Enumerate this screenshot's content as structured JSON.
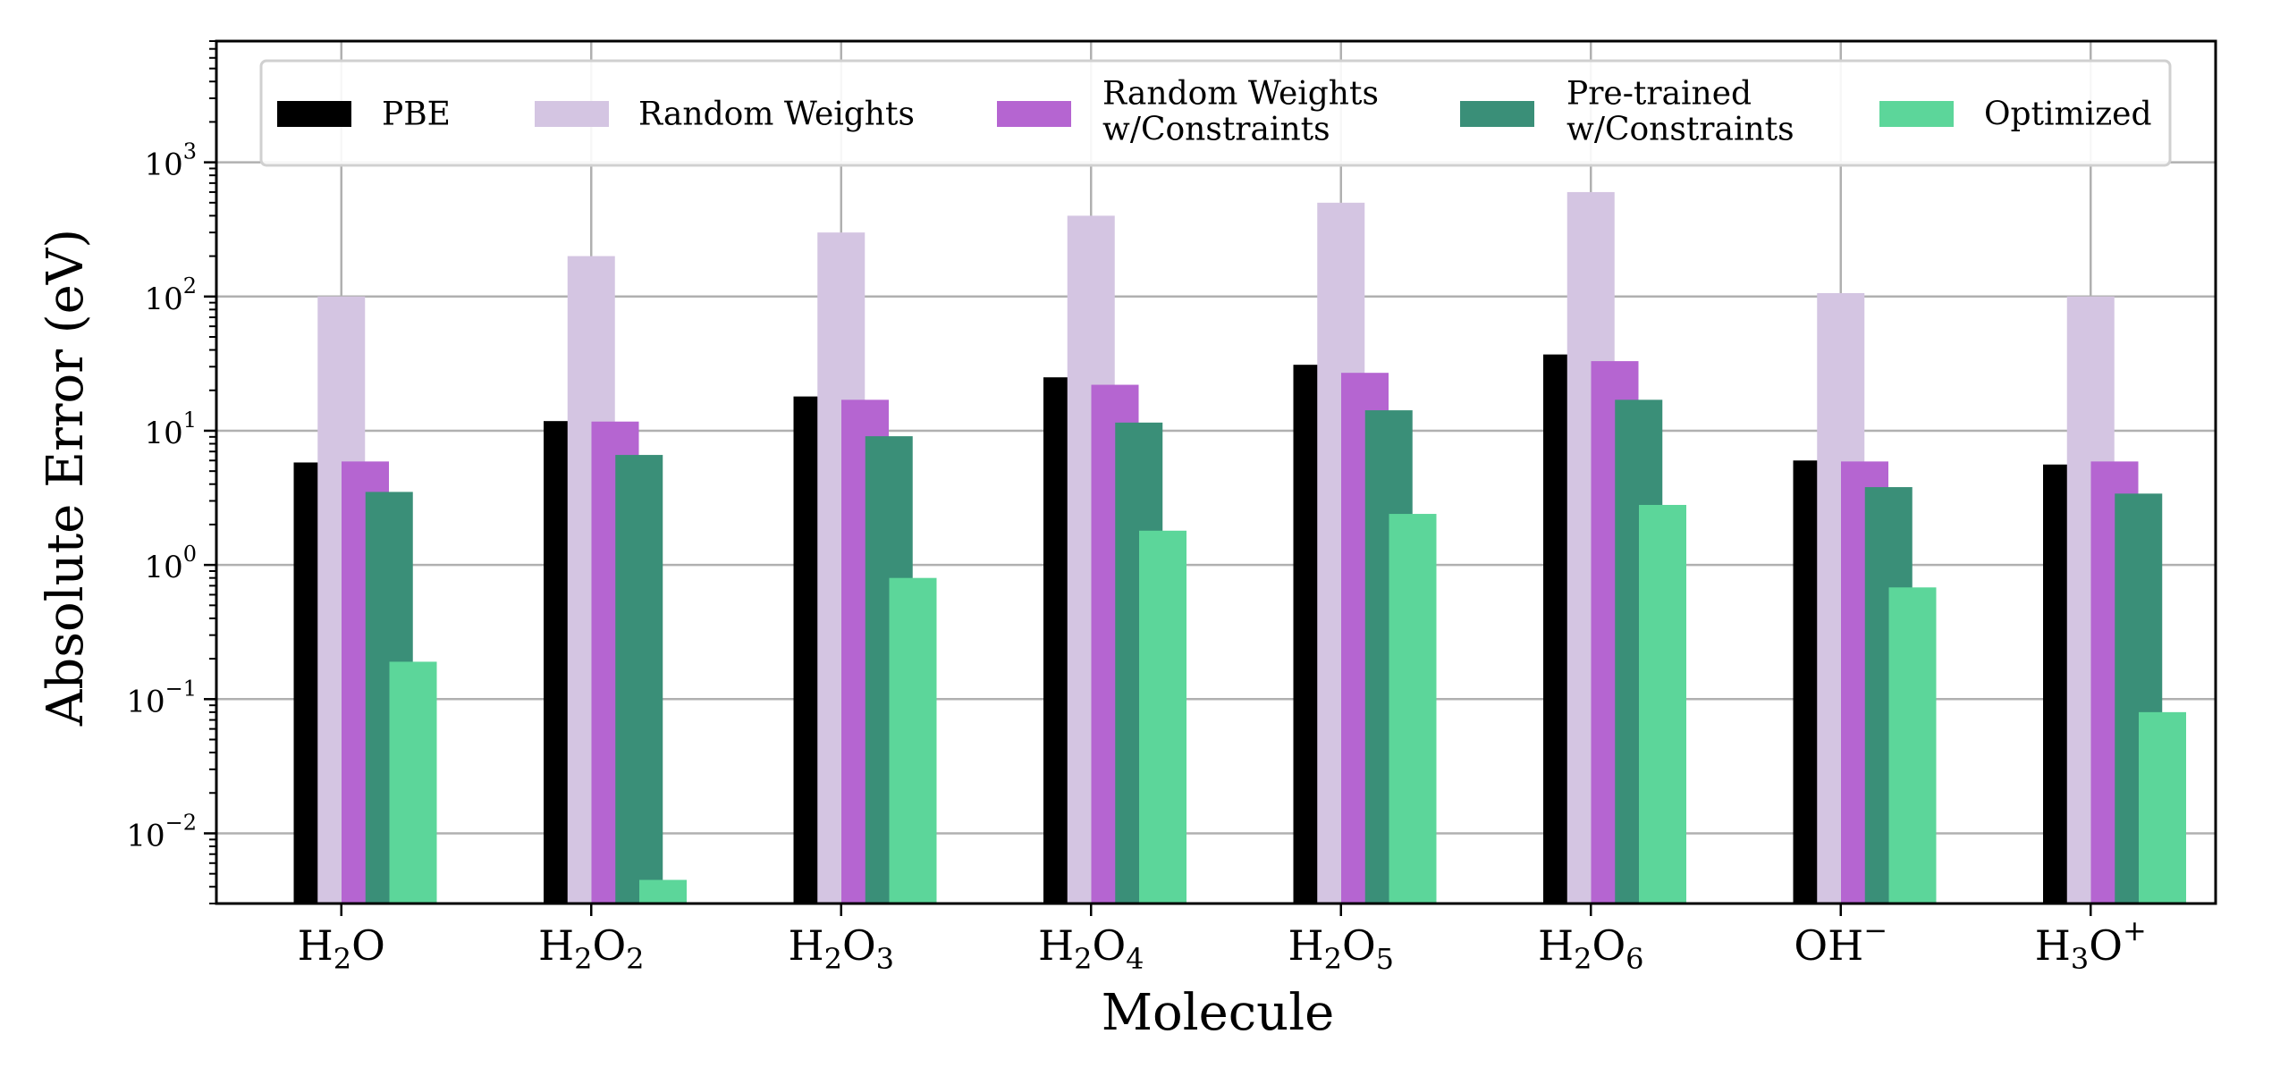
{
  "chart_data": {
    "type": "bar",
    "xlabel": "Molecule",
    "ylabel": "Absolute Error (eV)",
    "yscale": "log",
    "ylim": [
      0.003,
      8000
    ],
    "grid": true,
    "legend_position": "top",
    "categories": [
      {
        "base": "H",
        "sub1": "2",
        "mid": "O",
        "sub2": "",
        "sup": ""
      },
      {
        "base": "H",
        "sub1": "2",
        "mid": "O",
        "sub2": "2",
        "sup": ""
      },
      {
        "base": "H",
        "sub1": "2",
        "mid": "O",
        "sub2": "3",
        "sup": ""
      },
      {
        "base": "H",
        "sub1": "2",
        "mid": "O",
        "sub2": "4",
        "sup": ""
      },
      {
        "base": "H",
        "sub1": "2",
        "mid": "O",
        "sub2": "5",
        "sup": ""
      },
      {
        "base": "H",
        "sub1": "2",
        "mid": "O",
        "sub2": "6",
        "sup": ""
      },
      {
        "base": "OH",
        "sub1": "",
        "mid": "",
        "sub2": "",
        "sup": "−"
      },
      {
        "base": "H",
        "sub1": "3",
        "mid": "O",
        "sub2": "",
        "sup": "+"
      }
    ],
    "y_ticks": [
      {
        "base": "10",
        "exp": "−2",
        "value": 0.01
      },
      {
        "base": "10",
        "exp": "−1",
        "value": 0.1
      },
      {
        "base": "10",
        "exp": "0",
        "value": 1
      },
      {
        "base": "10",
        "exp": "1",
        "value": 10
      },
      {
        "base": "10",
        "exp": "2",
        "value": 100
      },
      {
        "base": "10",
        "exp": "3",
        "value": 1000
      }
    ],
    "series": [
      {
        "name": "PBE",
        "color": "#000000",
        "values": [
          5.8,
          11.8,
          18,
          25,
          31,
          37,
          6.0,
          5.6
        ]
      },
      {
        "name": "Random Weights",
        "color": "#d4c5e2",
        "values": [
          100,
          200,
          300,
          400,
          500,
          600,
          106,
          100
        ]
      },
      {
        "name": "Random Weights\nw/Constraints",
        "color": "#b565d1",
        "values": [
          5.9,
          11.7,
          17,
          22,
          27,
          33,
          5.9,
          5.9
        ]
      },
      {
        "name": "Pre-trained\nw/Constraints",
        "color": "#3a8f78",
        "values": [
          3.5,
          6.6,
          9.1,
          11.5,
          14.2,
          17,
          3.8,
          3.4
        ]
      },
      {
        "name": "Optimized",
        "color": "#5cd69a",
        "values": [
          0.19,
          0.0045,
          0.8,
          1.8,
          2.4,
          2.8,
          0.68,
          0.08
        ]
      }
    ]
  }
}
